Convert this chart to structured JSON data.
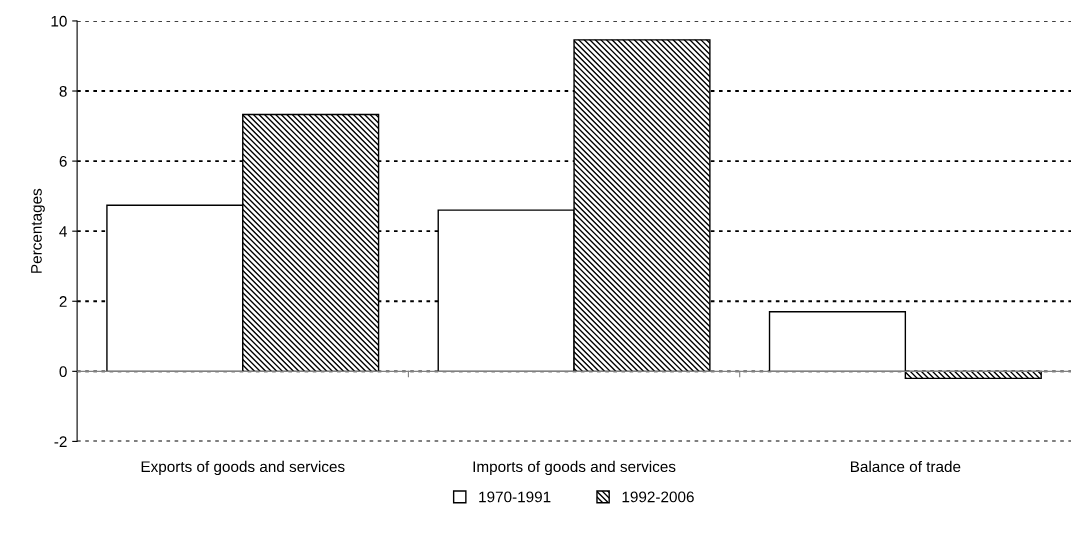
{
  "chart_data": {
    "type": "bar",
    "ylabel": "Percentages",
    "categories": [
      "Exports of goods and services",
      "Imports of goods and services",
      "Balance of trade"
    ],
    "series": [
      {
        "name": "1970-1991",
        "color": "#ffffff",
        "values": [
          4.74,
          4.6,
          1.7
        ]
      },
      {
        "name": "1992-2006",
        "color": "#000000",
        "values": [
          7.33,
          9.46,
          -0.2
        ]
      }
    ],
    "ylim": [
      -2,
      10
    ],
    "yticks": [
      -2,
      0,
      2,
      4,
      6,
      8,
      10
    ],
    "grid": "y",
    "legend": "bottom"
  }
}
